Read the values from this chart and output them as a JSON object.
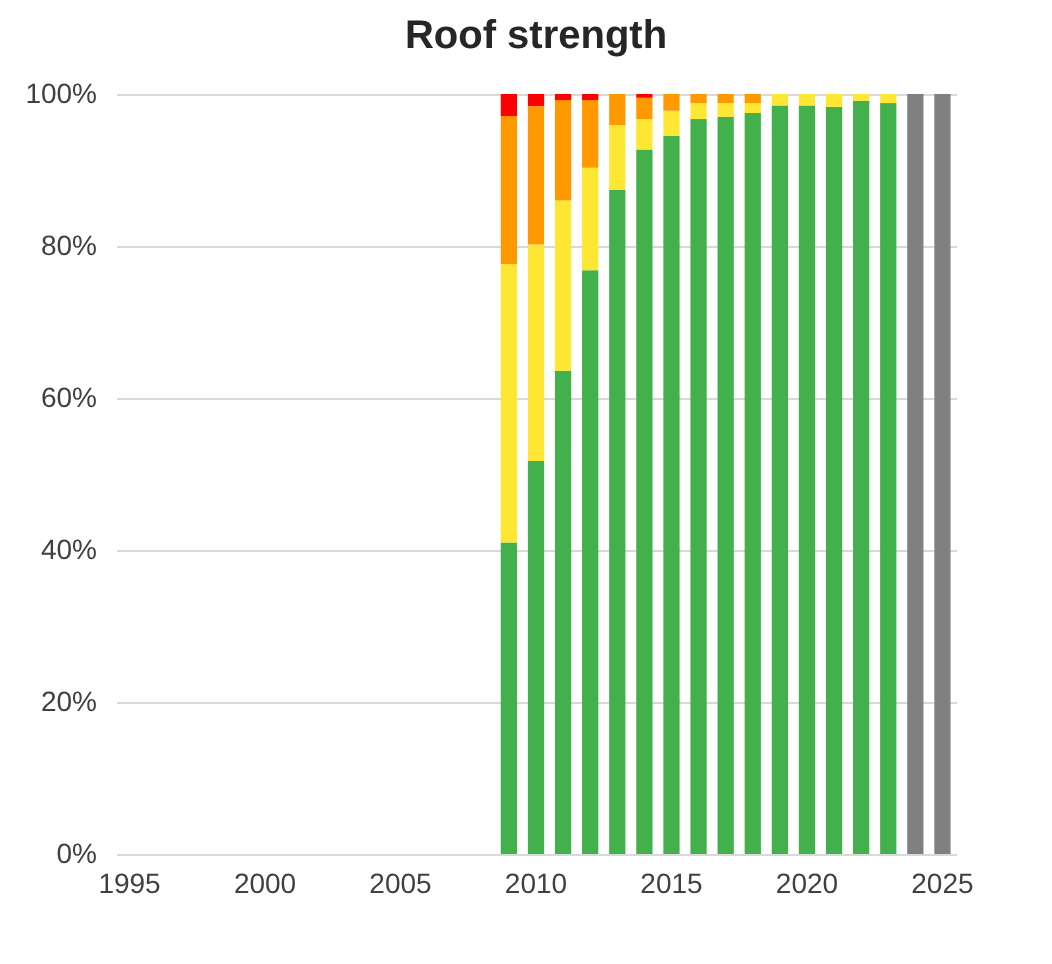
{
  "chart_data": {
    "type": "bar",
    "title": "Roof strength",
    "stacked": true,
    "categories": [
      "1995",
      null,
      null,
      null,
      null,
      "2000",
      null,
      null,
      null,
      null,
      "2005",
      null,
      null,
      null,
      null,
      "2010",
      null,
      null,
      null,
      null,
      "2015",
      null,
      null,
      null,
      null,
      "2020",
      null,
      null,
      null,
      null,
      "2025"
    ],
    "series": [
      {
        "color": "#43b14b",
        "values": [
          null,
          null,
          null,
          null,
          null,
          null,
          null,
          null,
          null,
          null,
          null,
          null,
          null,
          null,
          41,
          51.7,
          63.6,
          76.8,
          87.4,
          92.7,
          94.5,
          96.7,
          97,
          97.5,
          98.5,
          98.5,
          98.3,
          99.1,
          98.8,
          null,
          null
        ]
      },
      {
        "color": "#fde732",
        "values": [
          null,
          null,
          null,
          null,
          null,
          null,
          null,
          null,
          null,
          null,
          null,
          null,
          null,
          null,
          36.6,
          28.5,
          22.4,
          13.5,
          8.5,
          4,
          3.3,
          2.1,
          1.8,
          1.3,
          1.5,
          1.5,
          1.7,
          0.9,
          1.2,
          null,
          null
        ]
      },
      {
        "color": "#ff9900",
        "values": [
          null,
          null,
          null,
          null,
          null,
          null,
          null,
          null,
          null,
          null,
          null,
          null,
          null,
          null,
          19.5,
          18.2,
          13.2,
          8.9,
          4.1,
          2.8,
          2.2,
          1.2,
          1.2,
          1.2,
          null,
          null,
          null,
          null,
          null,
          null,
          null
        ]
      },
      {
        "color": "#ff0000",
        "values": [
          null,
          null,
          null,
          null,
          null,
          null,
          null,
          null,
          null,
          null,
          null,
          null,
          null,
          null,
          2.9,
          1.6,
          0.8,
          0.8,
          null,
          0.5,
          null,
          null,
          null,
          null,
          null,
          null,
          null,
          null,
          null,
          null,
          null
        ]
      },
      {
        "color": "#808080",
        "values": [
          null,
          null,
          null,
          null,
          null,
          null,
          null,
          null,
          null,
          null,
          null,
          null,
          null,
          null,
          null,
          null,
          null,
          null,
          null,
          null,
          null,
          null,
          null,
          null,
          null,
          null,
          null,
          null,
          null,
          100,
          100
        ]
      }
    ],
    "ylim": [
      0,
      100
    ],
    "yticks": [
      {
        "value": 0,
        "label": "0%"
      },
      {
        "value": 20,
        "label": "20%"
      },
      {
        "value": 40,
        "label": "40%"
      },
      {
        "value": 60,
        "label": "60%"
      },
      {
        "value": 80,
        "label": "80%"
      },
      {
        "value": 100,
        "label": "100%"
      }
    ],
    "grid": "y"
  }
}
